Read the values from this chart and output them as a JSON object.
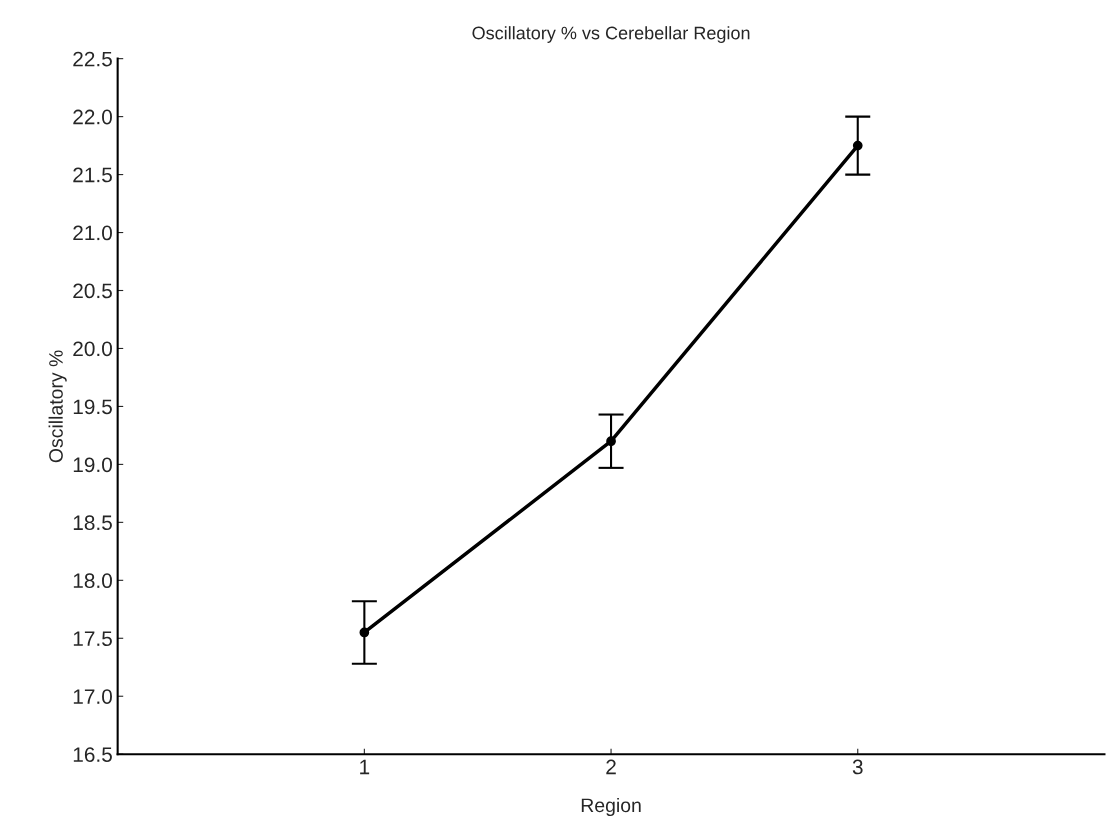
{
  "chart_data": {
    "type": "line",
    "title": "Oscillatory % vs Cerebellar Region",
    "xlabel": "Region",
    "ylabel": "Oscillatory %",
    "x": [
      1,
      2,
      3
    ],
    "series": [
      {
        "color": "#000000",
        "values": [
          17.55,
          19.2,
          21.75
        ],
        "errors": [
          0.27,
          0.23,
          0.25
        ]
      }
    ],
    "xlim": [
      0,
      4
    ],
    "xticks": [
      1,
      2,
      3
    ],
    "ylim": [
      16.5,
      22.5
    ],
    "yticks": [
      {
        "value": 16.5,
        "label": "16.5"
      },
      {
        "value": 17,
        "label": "17.0"
      },
      {
        "value": 17.5,
        "label": "17.5"
      },
      {
        "value": 18,
        "label": "18.0"
      },
      {
        "value": 18.5,
        "label": "18.5"
      },
      {
        "value": 19,
        "label": "19.0"
      },
      {
        "value": 19.5,
        "label": "19.5"
      },
      {
        "value": 20,
        "label": "20.0"
      },
      {
        "value": 20.5,
        "label": "20.5"
      },
      {
        "value": 21,
        "label": "21.0"
      },
      {
        "value": 21.5,
        "label": "21.5"
      },
      {
        "value": 22,
        "label": "22.0"
      },
      {
        "value": 22.5,
        "label": "22.5"
      }
    ],
    "marker": "circle",
    "line_style": "solid",
    "grid": false
  }
}
